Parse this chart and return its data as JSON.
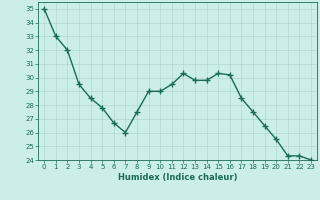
{
  "x": [
    0,
    1,
    2,
    3,
    4,
    5,
    6,
    7,
    8,
    9,
    10,
    11,
    12,
    13,
    14,
    15,
    16,
    17,
    18,
    19,
    20,
    21,
    22,
    23
  ],
  "y": [
    35,
    33,
    32,
    29.5,
    28.5,
    27.8,
    26.7,
    26,
    27.5,
    29,
    29,
    29.5,
    30.3,
    29.8,
    29.8,
    30.3,
    30.2,
    28.5,
    27.5,
    26.5,
    25.5,
    24.3,
    24.3,
    24
  ],
  "xlabel": "Humidex (Indice chaleur)",
  "xlim": [
    -0.5,
    23.5
  ],
  "ylim": [
    24,
    35.5
  ],
  "yticks": [
    24,
    25,
    26,
    27,
    28,
    29,
    30,
    31,
    32,
    33,
    34,
    35
  ],
  "xticks": [
    0,
    1,
    2,
    3,
    4,
    5,
    6,
    7,
    8,
    9,
    10,
    11,
    12,
    13,
    14,
    15,
    16,
    17,
    18,
    19,
    20,
    21,
    22,
    23
  ],
  "line_color": "#1a6b5a",
  "bg_color": "#cceee8",
  "grid_color": "#b0d8d0",
  "marker": "+",
  "marker_size": 4,
  "linewidth": 1.0,
  "tick_fontsize": 5.0,
  "xlabel_fontsize": 6.0
}
